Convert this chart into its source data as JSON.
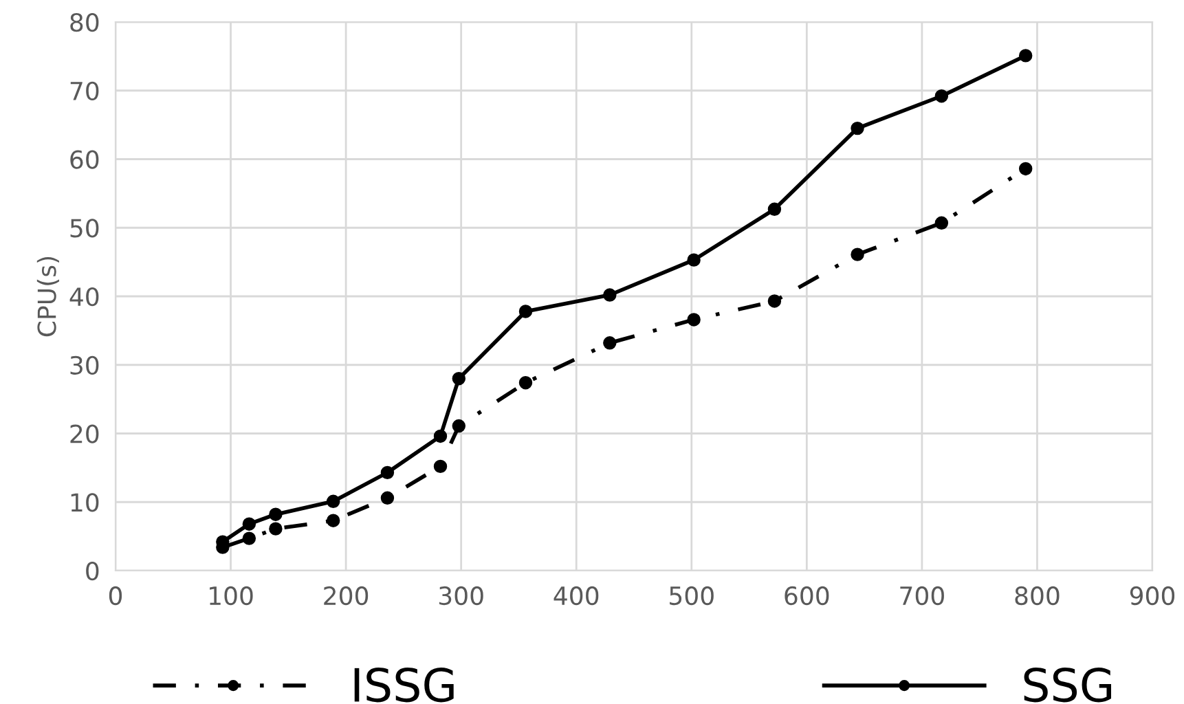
{
  "chart_data": {
    "type": "line",
    "ylabel": "CPU(s)",
    "xlim": [
      0,
      900
    ],
    "xticks": [
      0,
      100,
      200,
      300,
      400,
      500,
      600,
      700,
      800,
      900
    ],
    "ylim": [
      0,
      80
    ],
    "yticks": [
      0,
      10,
      20,
      30,
      40,
      50,
      60,
      70,
      80
    ],
    "grid": true,
    "legend": "bottom",
    "marker": "circle",
    "series": [
      {
        "name": "ISSG",
        "color": "#000000",
        "line_style": "dashdot",
        "x": [
          93,
          116,
          139,
          189,
          236,
          282,
          298,
          356,
          429,
          502,
          572,
          644,
          717,
          790
        ],
        "values": [
          3.4,
          4.7,
          6.1,
          7.3,
          10.6,
          15.2,
          21.1,
          27.4,
          33.2,
          36.6,
          39.3,
          46.1,
          50.7,
          58.6
        ]
      },
      {
        "name": "SSG",
        "color": "#000000",
        "line_style": "solid",
        "x": [
          93,
          116,
          139,
          189,
          236,
          282,
          298,
          356,
          429,
          502,
          572,
          644,
          717,
          790
        ],
        "values": [
          4.2,
          6.8,
          8.2,
          10.1,
          14.3,
          19.6,
          28.0,
          37.8,
          40.2,
          45.3,
          52.7,
          64.5,
          69.2,
          75.1
        ]
      }
    ]
  }
}
